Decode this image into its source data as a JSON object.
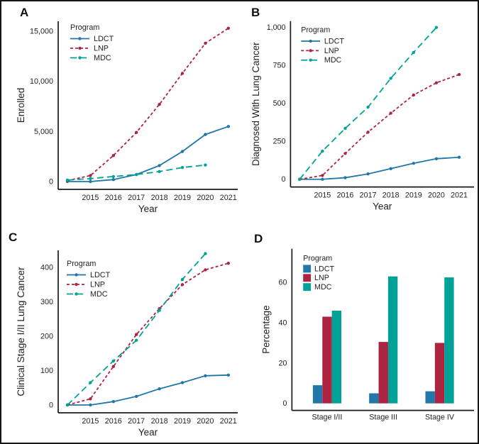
{
  "figure": {
    "panels": [
      {
        "id": "A",
        "label": "A"
      },
      {
        "id": "B",
        "label": "B"
      },
      {
        "id": "C",
        "label": "C"
      },
      {
        "id": "D",
        "label": "D"
      }
    ]
  },
  "colors": {
    "LDCT": "#2177a8",
    "LNP": "#ad2342",
    "MDC": "#00a298",
    "axis": "#1a1a1a",
    "text": "#222222",
    "background": "#ffffff",
    "border": "#161616"
  },
  "chart_data": [
    {
      "panel": "A",
      "type": "line",
      "title": "",
      "xlabel": "Year",
      "ylabel": "Enrolled",
      "legend_title": "Program",
      "legend_position": "top-left",
      "grid": false,
      "x": [
        2014,
        2015,
        2016,
        2017,
        2018,
        2019,
        2020,
        2021
      ],
      "xticks": [
        2015,
        2016,
        2017,
        2018,
        2019,
        2020,
        2021
      ],
      "ylim": [
        0,
        15500
      ],
      "yticks": [
        0,
        5000,
        10000,
        15000
      ],
      "ytick_labels": [
        "0",
        "5,000",
        "10,000",
        "15,000"
      ],
      "series": [
        {
          "name": "LDCT",
          "dash": "solid",
          "values": [
            0,
            0,
            200,
            700,
            1600,
            3000,
            4700,
            5500
          ]
        },
        {
          "name": "LNP",
          "dash": "dashed",
          "values": [
            100,
            600,
            2600,
            4900,
            7700,
            10800,
            13800,
            15300
          ]
        },
        {
          "name": "MDC",
          "dash": "longdash",
          "values": [
            150,
            300,
            500,
            700,
            1000,
            1400,
            1650,
            null
          ]
        }
      ]
    },
    {
      "panel": "B",
      "type": "line",
      "title": "",
      "xlabel": "Year",
      "ylabel": "Diagnosed With Lung Cancer",
      "legend_title": "Program",
      "legend_position": "top-left",
      "grid": false,
      "x": [
        2014,
        2015,
        2016,
        2017,
        2018,
        2019,
        2020,
        2021
      ],
      "xticks": [
        2015,
        2016,
        2017,
        2018,
        2019,
        2020,
        2021
      ],
      "ylim": [
        0,
        1000
      ],
      "yticks": [
        0,
        250,
        500,
        750,
        1000
      ],
      "ytick_labels": [
        "0",
        "250",
        "500",
        "750",
        "1,000"
      ],
      "series": [
        {
          "name": "LDCT",
          "dash": "solid",
          "values": [
            0,
            0,
            10,
            35,
            70,
            105,
            135,
            145
          ]
        },
        {
          "name": "LNP",
          "dash": "dashed",
          "values": [
            0,
            25,
            170,
            310,
            435,
            555,
            635,
            690
          ]
        },
        {
          "name": "MDC",
          "dash": "longdash",
          "values": [
            0,
            185,
            335,
            475,
            665,
            835,
            1000,
            null
          ]
        }
      ]
    },
    {
      "panel": "C",
      "type": "line",
      "title": "",
      "xlabel": "Year",
      "ylabel": "Clinical Stage I/II Lung Cancer",
      "legend_title": "Program",
      "legend_position": "top-left",
      "grid": false,
      "x": [
        2014,
        2015,
        2016,
        2017,
        2018,
        2019,
        2020,
        2021
      ],
      "xticks": [
        2015,
        2016,
        2017,
        2018,
        2019,
        2020,
        2021
      ],
      "ylim": [
        0,
        450
      ],
      "yticks": [
        0,
        100,
        200,
        300,
        400
      ],
      "ytick_labels": [
        "0",
        "100",
        "200",
        "300",
        "400"
      ],
      "series": [
        {
          "name": "LDCT",
          "dash": "solid",
          "values": [
            0,
            0,
            10,
            25,
            47,
            65,
            85,
            87
          ]
        },
        {
          "name": "LNP",
          "dash": "dashed",
          "values": [
            0,
            18,
            112,
            205,
            280,
            350,
            393,
            412
          ]
        },
        {
          "name": "MDC",
          "dash": "longdash",
          "values": [
            0,
            65,
            128,
            188,
            275,
            365,
            440,
            null
          ]
        }
      ]
    },
    {
      "panel": "D",
      "type": "bar",
      "title": "",
      "xlabel": "",
      "ylabel": "Percentage",
      "legend_title": "Program",
      "legend_position": "top-left",
      "grid": false,
      "categories": [
        "Stage I/II",
        "Stage III",
        "Stage IV"
      ],
      "ylim": [
        0,
        75
      ],
      "yticks": [
        0,
        20,
        40,
        60
      ],
      "ytick_labels": [
        "0",
        "20",
        "40",
        "60"
      ],
      "series": [
        {
          "name": "LDCT",
          "values": [
            9,
            5,
            6
          ]
        },
        {
          "name": "LNP",
          "values": [
            43,
            30.5,
            30
          ]
        },
        {
          "name": "MDC",
          "values": [
            46,
            63,
            62.5
          ]
        }
      ]
    }
  ]
}
